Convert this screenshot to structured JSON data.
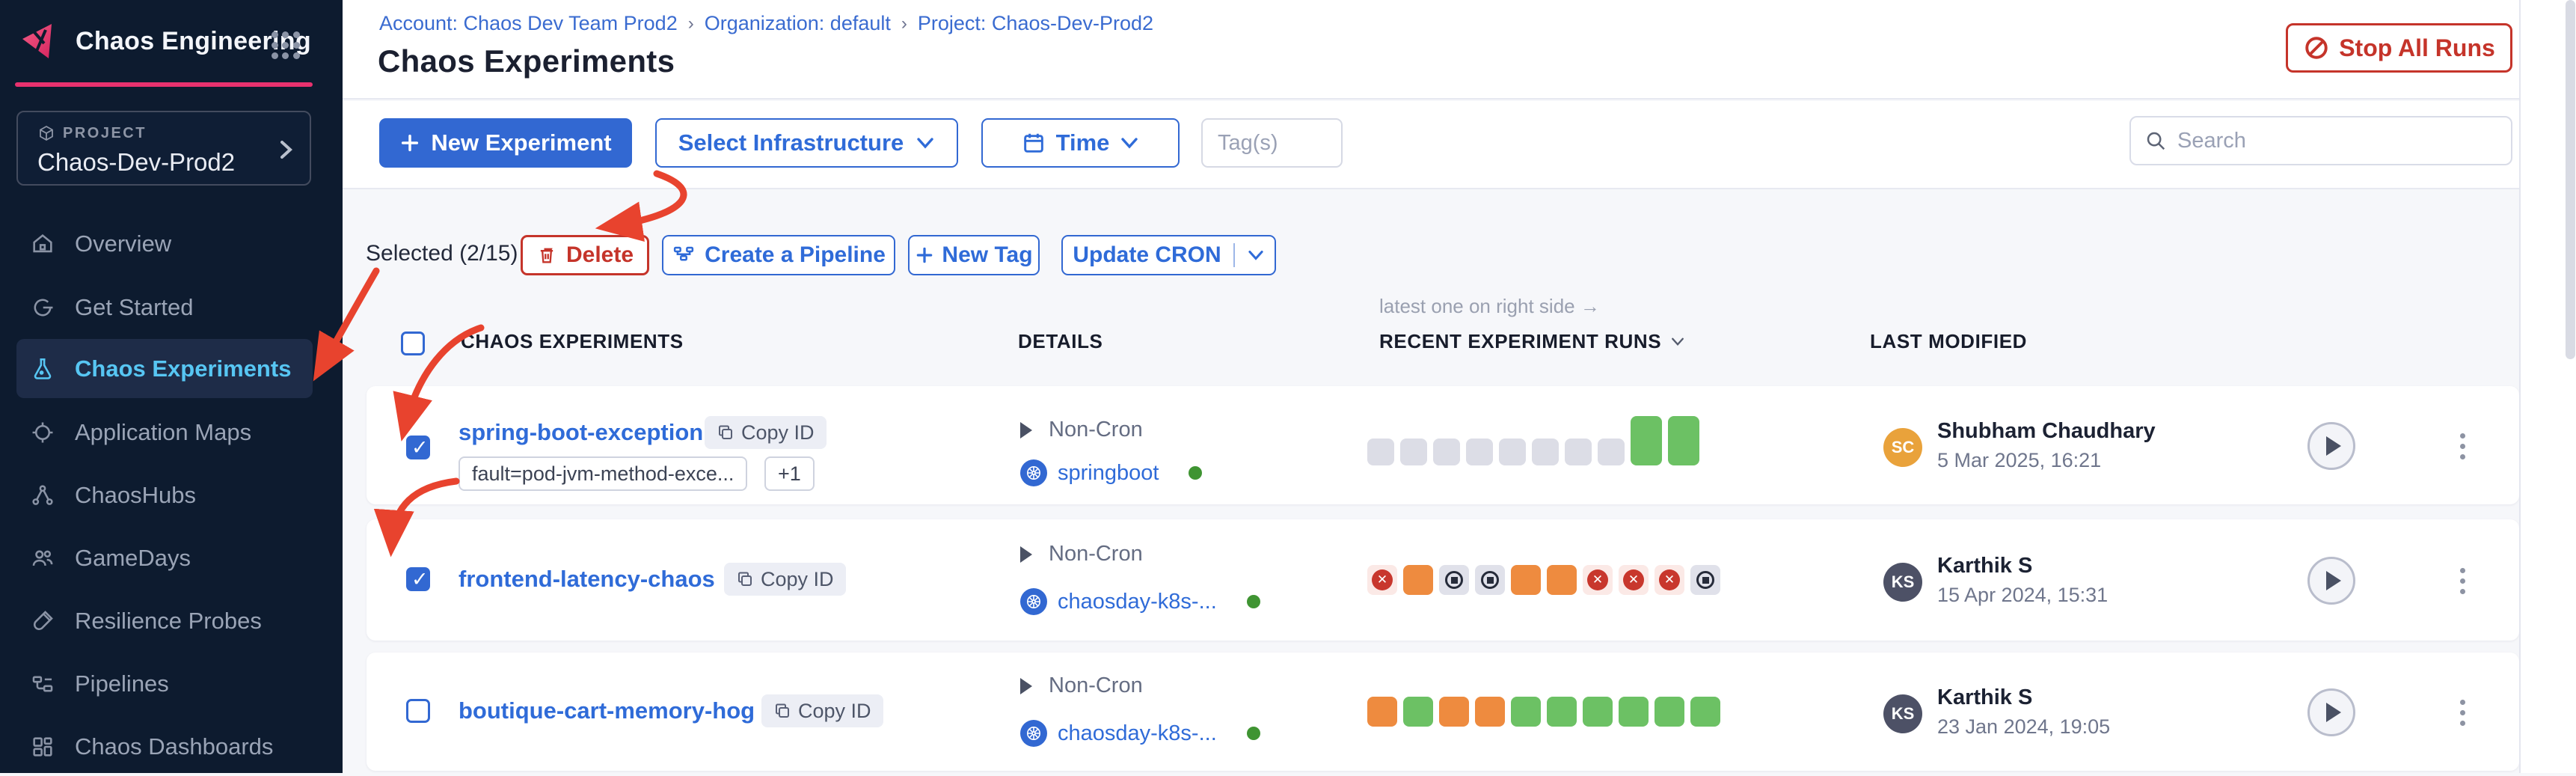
{
  "app": {
    "name": "Chaos Engineering"
  },
  "project": {
    "label": "PROJECT",
    "name": "Chaos-Dev-Prod2"
  },
  "sidebar": {
    "items": [
      {
        "label": "Overview"
      },
      {
        "label": "Get Started"
      },
      {
        "label": "Chaos Experiments",
        "active": true
      },
      {
        "label": "Application Maps"
      },
      {
        "label": "ChaosHubs"
      },
      {
        "label": "GameDays"
      },
      {
        "label": "Resilience Probes"
      },
      {
        "label": "Pipelines"
      },
      {
        "label": "Chaos Dashboards"
      }
    ]
  },
  "breadcrumb": {
    "account": "Account: Chaos Dev Team Prod2",
    "org": "Organization: default",
    "project": "Project: Chaos-Dev-Prod2",
    "sep": "›"
  },
  "page": {
    "title": "Chaos Experiments",
    "stop_all_runs": "Stop All Runs"
  },
  "toolbar": {
    "new_experiment": "New Experiment",
    "select_infrastructure": "Select Infrastructure",
    "time": "Time",
    "tags_placeholder": "Tag(s)",
    "search_placeholder": "Search"
  },
  "selection": {
    "label": "Selected (2/15)",
    "delete": "Delete",
    "create_pipeline": "Create a Pipeline",
    "new_tag": "New Tag",
    "update_cron": "Update CRON"
  },
  "table": {
    "headers": {
      "experiments": "CHAOS EXPERIMENTS",
      "details": "DETAILS",
      "runs": "RECENT EXPERIMENT RUNS",
      "modified": "LAST MODIFIED"
    },
    "annotation": "latest one on right side →",
    "rows": [
      {
        "name": "spring-boot-exception",
        "copy_id": "Copy ID",
        "tag": "fault=pod-jvm-method-exce...",
        "tag_more": "+1",
        "schedule": "Non-Cron",
        "infra": "springboot",
        "checked": true,
        "runs": [
          "empty",
          "empty",
          "empty",
          "empty",
          "empty",
          "empty",
          "empty",
          "empty",
          "success-big",
          "success-big"
        ],
        "modified": {
          "initials": "SC",
          "color": "#E9A23B",
          "name": "Shubham Chaudhary",
          "date": "5 Mar 2025, 16:21"
        }
      },
      {
        "name": "frontend-latency-chaos",
        "copy_id": "Copy ID",
        "schedule": "Non-Cron",
        "infra": "chaosday-k8s-...",
        "checked": true,
        "runs": [
          "failed",
          "warning",
          "stopped",
          "stopped",
          "warning",
          "warning",
          "failed",
          "failed",
          "failed",
          "stopped"
        ],
        "modified": {
          "initials": "KS",
          "color": "#4D5166",
          "name": "Karthik S",
          "date": "15 Apr 2024, 15:31"
        }
      },
      {
        "name": "boutique-cart-memory-hog",
        "copy_id": "Copy ID",
        "schedule": "Non-Cron",
        "infra": "chaosday-k8s-...",
        "checked": false,
        "runs": [
          "warning",
          "success",
          "warning",
          "warning",
          "success",
          "success",
          "success",
          "success",
          "success",
          "success"
        ],
        "modified": {
          "initials": "KS",
          "color": "#4D5166",
          "name": "Karthik S",
          "date": "23 Jan 2024, 19:05"
        }
      }
    ]
  },
  "colors": {
    "accent_pink": "#E8316E",
    "primary_blue": "#3268D2",
    "danger_red": "#C5342A",
    "run_success": "#6CC164",
    "run_warning": "#EE8B3F",
    "run_failed": "#C8372D",
    "run_empty": "#DCDDE6",
    "active_nav": "#57C6F3",
    "annotation_arrow": "#E8432E"
  }
}
